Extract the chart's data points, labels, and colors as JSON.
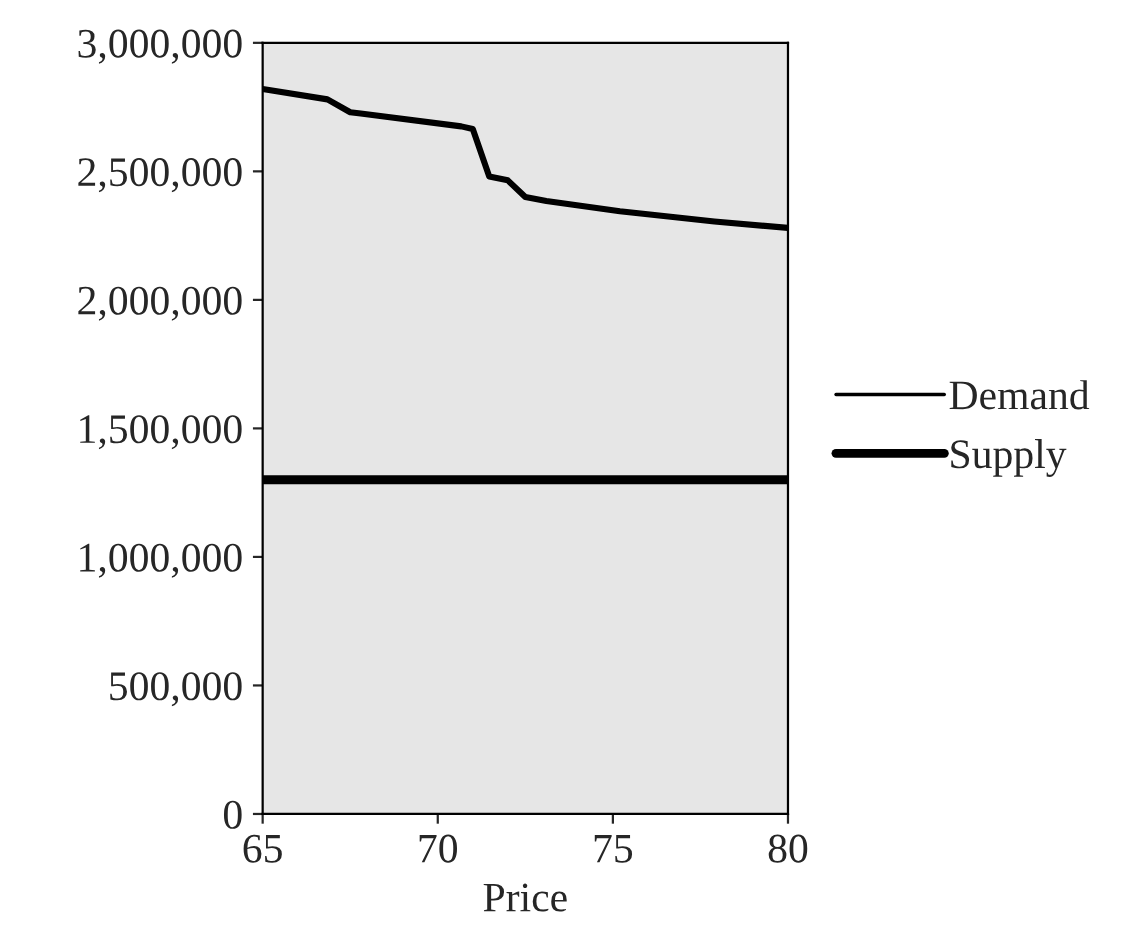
{
  "chart_data": {
    "type": "line",
    "xlabel": "Price",
    "xlim": [
      65,
      80
    ],
    "xticks": [
      65,
      70,
      75,
      80
    ],
    "ylim": [
      0,
      3000000
    ],
    "yticks": [
      {
        "value": 0,
        "label": "0"
      },
      {
        "value": 500000,
        "label": "500,000"
      },
      {
        "value": 1000000,
        "label": "1,000,000"
      },
      {
        "value": 1500000,
        "label": "1,500,000"
      },
      {
        "value": 2000000,
        "label": "2,000,000"
      },
      {
        "value": 2500000,
        "label": "2,500,000"
      },
      {
        "value": 3000000,
        "label": "3,000,000"
      }
    ],
    "grid": false,
    "legend": "right",
    "marker": "none",
    "line_style": "solid",
    "series": [
      {
        "name": "Demand",
        "color": "#000000",
        "x": [
          65,
          66.85,
          67.5,
          67.8,
          70.67,
          71.0,
          71.47,
          72.0,
          72.5,
          73.1,
          75.2,
          77.9,
          80
        ],
        "values": [
          2820000,
          2780000,
          2730000,
          2725000,
          2675000,
          2665000,
          2480000,
          2465000,
          2400000,
          2385000,
          2345000,
          2305000,
          2280000
        ]
      },
      {
        "name": "Supply",
        "color": "#000000",
        "x": [
          65,
          80
        ],
        "values": [
          1300000,
          1300000
        ]
      }
    ]
  }
}
